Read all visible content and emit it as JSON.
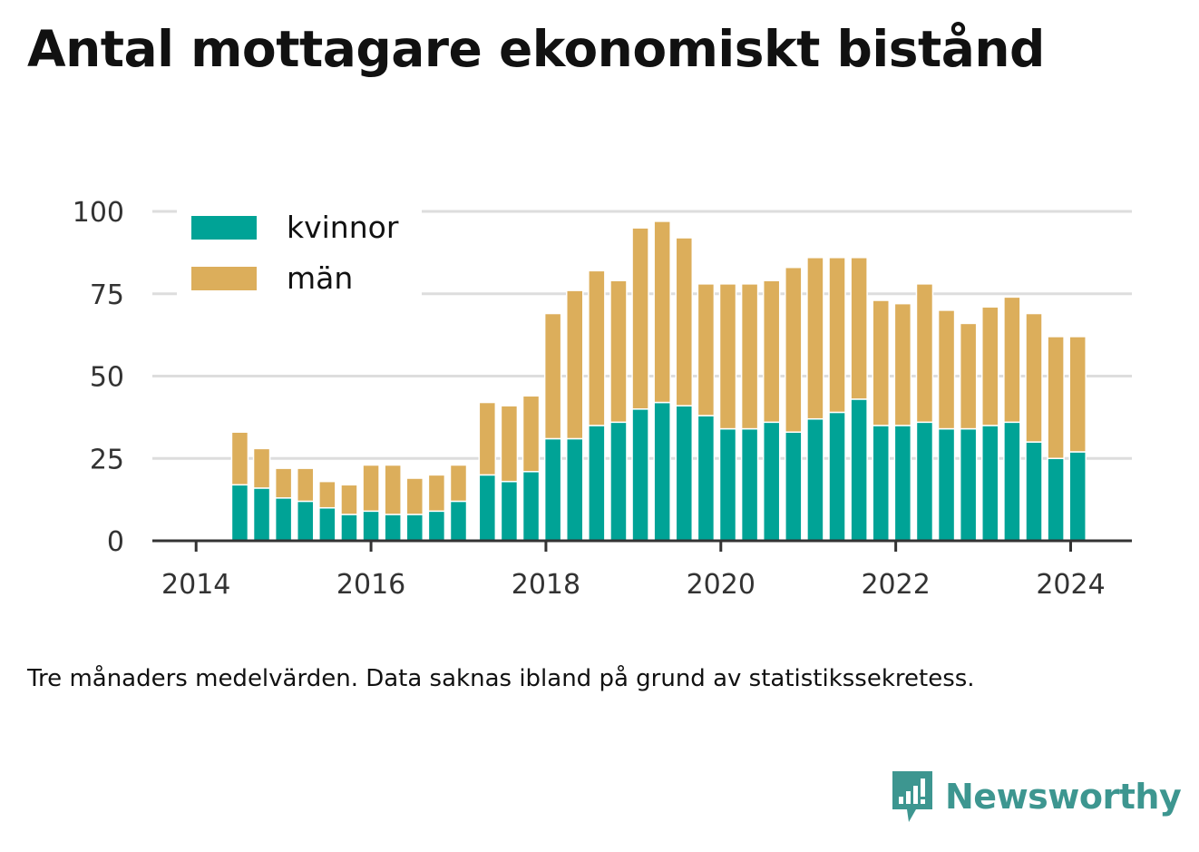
{
  "title": "Antal mottagare ekonomiskt bistånd",
  "footnote": "Tre månaders medelvärden. Data saknas ibland på grund av statistikssekretess.",
  "brand": {
    "name": "Newsworthy",
    "icon": "bar-chart-speech-bubble-icon",
    "color": "#3d9690"
  },
  "colors": {
    "kvinnor": "#00a396",
    "man": "#dcae5b",
    "grid": "#dddddd",
    "axis": "#333333"
  },
  "chart_data": {
    "type": "bar",
    "stacked": true,
    "title": "Antal mottagare ekonomiskt bistånd",
    "xlabel": "",
    "ylabel": "",
    "ylim": [
      0,
      100
    ],
    "yticks": [
      0,
      25,
      50,
      75,
      100
    ],
    "xticks": [
      "2014",
      "2016",
      "2018",
      "2020",
      "2022",
      "2024"
    ],
    "xticks_values": [
      2014,
      2016,
      2018,
      2020,
      2022,
      2024
    ],
    "xlim": [
      2013.5,
      2024.7
    ],
    "grid": true,
    "legend_position": "top-left",
    "x": [
      2014.5,
      2014.75,
      2015.0,
      2015.25,
      2015.5,
      2015.75,
      2016.0,
      2016.25,
      2016.5,
      2016.75,
      2017.0,
      2017.33,
      2017.58,
      2017.83,
      2018.08,
      2018.33,
      2018.58,
      2018.83,
      2019.08,
      2019.33,
      2019.58,
      2019.83,
      2020.08,
      2020.33,
      2020.58,
      2020.83,
      2021.08,
      2021.33,
      2021.58,
      2021.83,
      2022.08,
      2022.33,
      2022.58,
      2022.83,
      2023.08,
      2023.33,
      2023.58,
      2023.83,
      2024.08
    ],
    "series": [
      {
        "name": "kvinnor",
        "color": "#00a396",
        "values": [
          17,
          16,
          13,
          12,
          10,
          8,
          9,
          8,
          8,
          9,
          12,
          20,
          18,
          21,
          31,
          31,
          35,
          36,
          40,
          42,
          41,
          38,
          34,
          34,
          36,
          33,
          37,
          39,
          43,
          35,
          35,
          36,
          34,
          34,
          35,
          36,
          30,
          25,
          27
        ]
      },
      {
        "name": "män",
        "color": "#dcae5b",
        "values": [
          16,
          12,
          9,
          10,
          8,
          9,
          14,
          15,
          11,
          11,
          11,
          22,
          23,
          23,
          38,
          45,
          47,
          43,
          55,
          55,
          51,
          40,
          44,
          44,
          43,
          50,
          49,
          47,
          43,
          38,
          37,
          42,
          36,
          32,
          36,
          38,
          39,
          37,
          35
        ]
      }
    ]
  }
}
